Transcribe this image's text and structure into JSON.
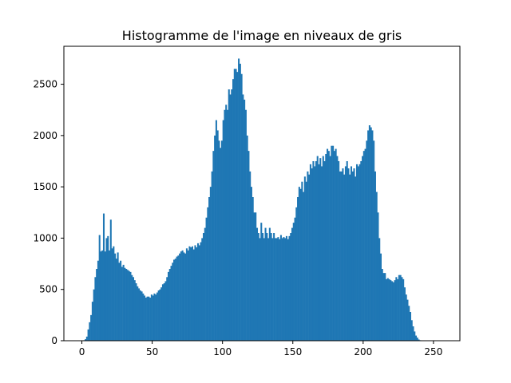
{
  "chart_data": {
    "type": "bar",
    "title": "Histogramme de l'image en niveaux de gris",
    "xlabel": "",
    "ylabel": "",
    "xlim": [
      -12.8,
      268.8
    ],
    "ylim": [
      0,
      2870
    ],
    "x_ticks": [
      0,
      50,
      100,
      150,
      200,
      250
    ],
    "y_ticks": [
      0,
      500,
      1000,
      1500,
      2000,
      2500
    ],
    "grid": false,
    "bar_color": "#1f77b4",
    "bins_start": 0,
    "bin_width": 1,
    "values": [
      0,
      5,
      15,
      40,
      110,
      180,
      250,
      380,
      500,
      620,
      700,
      780,
      1030,
      870,
      880,
      1240,
      870,
      1000,
      1020,
      880,
      1180,
      900,
      920,
      850,
      800,
      860,
      760,
      780,
      720,
      740,
      710,
      700,
      690,
      680,
      670,
      640,
      620,
      590,
      560,
      530,
      510,
      490,
      480,
      460,
      440,
      420,
      430,
      430,
      420,
      450,
      440,
      460,
      450,
      470,
      490,
      500,
      520,
      550,
      560,
      580,
      620,
      670,
      700,
      730,
      760,
      790,
      800,
      820,
      830,
      850,
      870,
      880,
      860,
      850,
      900,
      880,
      920,
      910,
      920,
      890,
      930,
      910,
      950,
      930,
      960,
      1000,
      1050,
      1100,
      1200,
      1300,
      1400,
      1500,
      1650,
      1850,
      2000,
      2150,
      2050,
      1950,
      1880,
      1950,
      2150,
      2250,
      2300,
      2250,
      2450,
      2400,
      2450,
      2550,
      2650,
      2650,
      2620,
      2750,
      2700,
      2600,
      2400,
      2350,
      2250,
      2000,
      1850,
      1650,
      1500,
      1400,
      1250,
      1250,
      1100,
      1050,
      1000,
      1150,
      1050,
      1000,
      1100,
      1050,
      1000,
      1100,
      1050,
      1000,
      1050,
      1000,
      1000,
      1010,
      990,
      1030,
      1000,
      1010,
      1000,
      1020,
      990,
      1020,
      1050,
      1100,
      1150,
      1200,
      1300,
      1400,
      1500,
      1480,
      1550,
      1450,
      1600,
      1550,
      1650,
      1620,
      1720,
      1680,
      1750,
      1700,
      1750,
      1800,
      1720,
      1780,
      1700,
      1800,
      1750,
      1820,
      1870,
      1850,
      1800,
      1900,
      1900,
      1850,
      1870,
      1800,
      1750,
      1650,
      1650,
      1680,
      1620,
      1700,
      1750,
      1680,
      1620,
      1700,
      1650,
      1680,
      1600,
      1720,
      1700,
      1720,
      1750,
      1800,
      1850,
      1870,
      1950,
      2050,
      2100,
      2080,
      2050,
      1950,
      1650,
      1450,
      1250,
      1000,
      850,
      700,
      660,
      660,
      600,
      610,
      600,
      590,
      580,
      570,
      590,
      620,
      600,
      640,
      640,
      620,
      600,
      520,
      450,
      400,
      340,
      280,
      200,
      140,
      90,
      50,
      30,
      12,
      5,
      2
    ]
  }
}
